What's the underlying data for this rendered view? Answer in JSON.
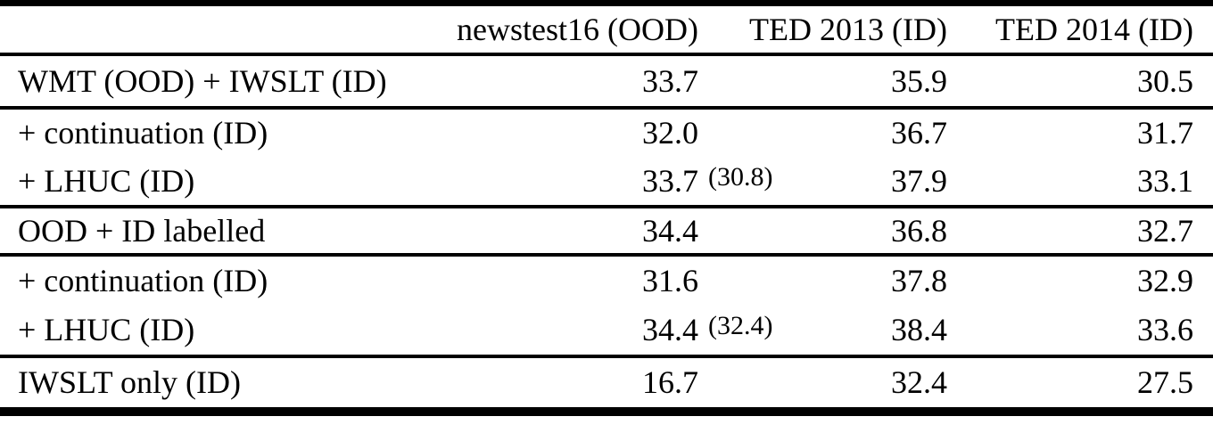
{
  "colors": {
    "background": "#ffffff",
    "text": "#000000",
    "rule": "#000000"
  },
  "table": {
    "header": {
      "col0": "",
      "col1": "newstest16 (OOD)",
      "col2": "TED 2013 (ID)",
      "col3": "TED 2014 (ID)"
    },
    "rows": [
      {
        "label": "WMT (OOD) + IWSLT (ID)",
        "c1": "33.7",
        "c2": "35.9",
        "c3": "30.5"
      },
      {
        "label": "+ continuation (ID)",
        "c1": "32.0",
        "c2": "36.7",
        "c3": "31.7"
      },
      {
        "label": "+ LHUC (ID)",
        "c1": "33.7",
        "c1_paren": "(30.8)",
        "c2": "37.9",
        "c3": "33.1"
      },
      {
        "label": "OOD + ID labelled",
        "c1": "34.4",
        "c2": "36.8",
        "c3": "32.7"
      },
      {
        "label": "+ continuation (ID)",
        "c1": "31.6",
        "c2": "37.8",
        "c3": "32.9"
      },
      {
        "label": "+ LHUC (ID)",
        "c1": "34.4",
        "c1_paren": "(32.4)",
        "c2": "38.4",
        "c3": "33.6"
      },
      {
        "label": "IWSLT only (ID)",
        "c1": "16.7",
        "c2": "32.4",
        "c3": "27.5"
      }
    ]
  }
}
